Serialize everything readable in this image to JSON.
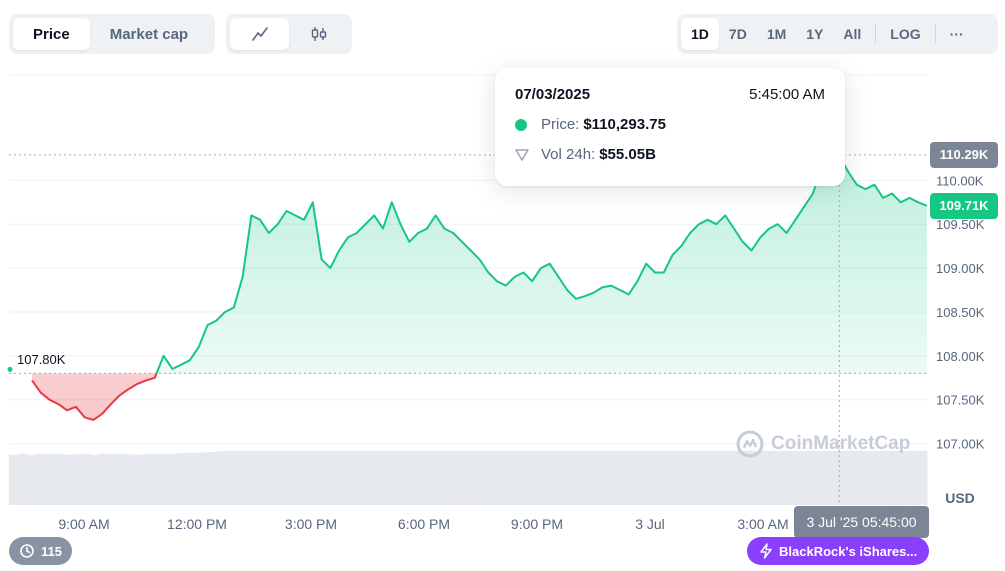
{
  "toolbar": {
    "metric_tabs": [
      {
        "label": "Price",
        "active": true
      },
      {
        "label": "Market cap",
        "active": false
      }
    ],
    "chart_type_icons": [
      "line-chart-icon",
      "candlestick-icon"
    ],
    "ranges": [
      "1D",
      "7D",
      "1M",
      "1Y",
      "All"
    ],
    "active_range": "1D",
    "log_label": "LOG",
    "more_label": "···"
  },
  "tooltip": {
    "date": "07/03/2025",
    "time": "5:45:00 AM",
    "price_label": "Price:",
    "price_value": "$110,293.75",
    "volume_label": "Vol 24h:",
    "volume_value": "$55.05B"
  },
  "price_tags": {
    "hover_price": "110.29K",
    "current_price": "109.71K",
    "baseline": "107.80K"
  },
  "currency_label": "USD",
  "hover_time_label": "3 Jul '25 05:45:00",
  "history_count": "115",
  "news_label": "BlackRock's iShares...",
  "watermark": "CoinMarketCap",
  "colors": {
    "up": "#16c784",
    "down": "#ea3943",
    "tag_gray": "#7b8596",
    "news": "#8a3ffc"
  },
  "chart_data": {
    "type": "area",
    "title": "",
    "xlabel": "",
    "ylabel": "USD",
    "x_ticks": [
      "9:00 AM",
      "12:00 PM",
      "3:00 PM",
      "6:00 PM",
      "9:00 PM",
      "3 Jul",
      "3:00 AM"
    ],
    "y_ticks": [
      "110.00K",
      "109.50K",
      "109.00K",
      "108.50K",
      "108.00K",
      "107.50K",
      "107.00K"
    ],
    "ylim": [
      106.95,
      111.2
    ],
    "baseline_value": 107.8,
    "hover_value": 110.29,
    "last_value": 109.71,
    "grid": true,
    "series": [
      {
        "values": [
          107.72,
          107.58,
          107.5,
          107.45,
          107.38,
          107.42,
          107.3,
          107.27,
          107.34,
          107.45,
          107.55,
          107.62,
          107.68,
          107.72,
          107.75,
          108.0,
          107.85,
          107.9,
          107.95,
          108.1,
          108.35,
          108.4,
          108.5,
          108.55,
          108.9,
          109.6,
          109.55,
          109.4,
          109.5,
          109.65,
          109.6,
          109.55,
          109.75,
          109.1,
          109.0,
          109.2,
          109.35,
          109.4,
          109.5,
          109.6,
          109.45,
          109.75,
          109.5,
          109.3,
          109.4,
          109.45,
          109.6,
          109.45,
          109.4,
          109.3,
          109.2,
          109.1,
          108.95,
          108.85,
          108.8,
          108.9,
          108.95,
          108.85,
          109.0,
          109.05,
          108.9,
          108.75,
          108.65,
          108.68,
          108.72,
          108.78,
          108.8,
          108.75,
          108.7,
          108.85,
          109.05,
          108.95,
          108.95,
          109.15,
          109.25,
          109.4,
          109.5,
          109.55,
          109.5,
          109.6,
          109.45,
          109.3,
          109.2,
          109.35,
          109.45,
          109.5,
          109.4,
          109.55,
          109.7,
          109.85,
          110.15,
          110.25,
          110.29,
          110.1,
          109.95,
          109.9,
          109.95,
          109.8,
          109.85,
          109.75,
          109.8,
          109.75,
          109.71
        ],
        "volume": [
          0.88,
          0.9,
          0.88,
          0.9,
          0.89,
          0.9,
          0.88,
          0.89,
          0.9,
          0.88,
          0.9,
          0.89,
          0.9,
          0.89,
          0.88,
          0.9,
          0.9,
          0.89,
          0.9,
          0.91,
          0.92,
          0.92,
          0.93,
          0.94,
          0.95,
          0.95,
          0.95,
          0.95,
          0.95,
          0.95,
          0.95,
          0.95,
          0.95,
          0.95,
          0.95,
          0.95,
          0.95,
          0.95,
          0.95,
          0.95,
          0.95,
          0.95,
          0.95,
          0.95,
          0.95,
          0.95,
          0.95,
          0.95,
          0.95,
          0.95,
          0.95,
          0.95,
          0.95,
          0.95,
          0.95,
          0.95,
          0.95,
          0.95,
          0.95,
          0.95,
          0.95,
          0.95,
          0.95,
          0.95,
          0.95,
          0.95,
          0.95,
          0.95,
          0.95,
          0.95,
          0.95,
          0.95,
          0.95,
          0.95,
          0.95,
          0.95,
          0.95,
          0.95,
          0.95,
          0.95,
          0.95,
          0.95,
          0.95,
          0.95,
          0.95,
          0.95,
          0.95,
          0.95,
          0.95,
          0.95,
          0.95,
          0.95,
          0.95,
          0.95,
          0.95,
          0.95,
          0.95,
          0.95,
          0.95,
          0.95,
          0.95,
          0.95,
          0.95
        ]
      }
    ]
  }
}
